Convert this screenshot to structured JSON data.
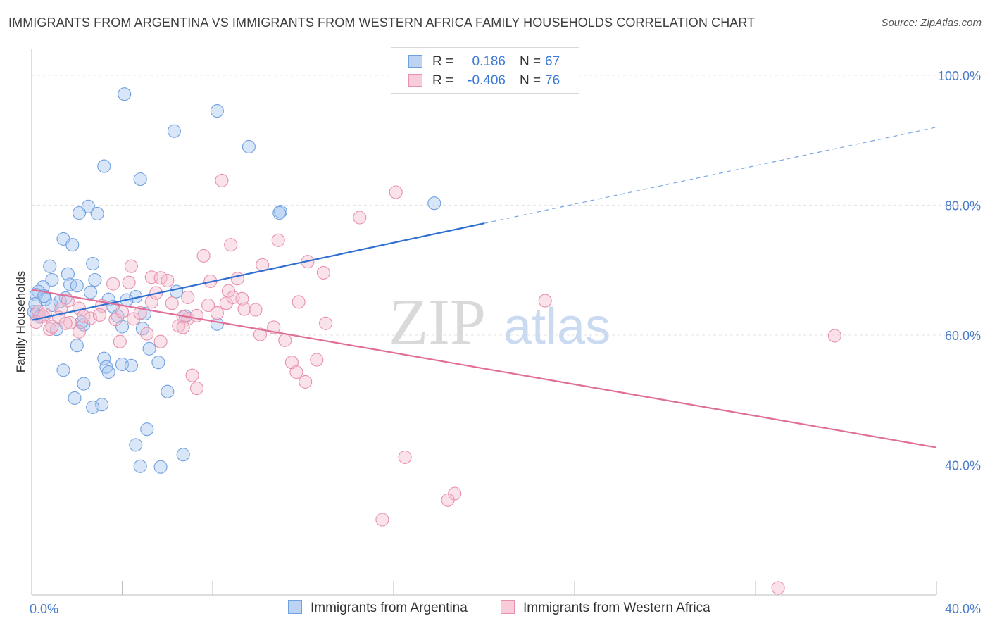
{
  "title": "IMMIGRANTS FROM ARGENTINA VS IMMIGRANTS FROM WESTERN AFRICA FAMILY HOUSEHOLDS CORRELATION CHART",
  "source": "Source: ZipAtlas.com",
  "watermark": {
    "zip": "ZIP",
    "atlas": "atlas"
  },
  "legend": {
    "series1": {
      "r_label": "R =",
      "r_value": "0.186",
      "n_label": "N =",
      "n_value": "67"
    },
    "series2": {
      "r_label": "R =",
      "r_value": "-0.406",
      "n_label": "N =",
      "n_value": "76"
    }
  },
  "chart_data": {
    "type": "scatter",
    "title": "IMMIGRANTS FROM ARGENTINA VS IMMIGRANTS FROM WESTERN AFRICA FAMILY HOUSEHOLDS CORRELATION CHART",
    "xlabel": "",
    "ylabel": "Family Households",
    "xlim": [
      0,
      40
    ],
    "ylim": [
      20,
      104
    ],
    "x_tick_labels": [
      "0.0%",
      "40.0%"
    ],
    "y_ticks": [
      40,
      60,
      80,
      100
    ],
    "y_tick_labels": [
      "40.0%",
      "60.0%",
      "80.0%",
      "100.0%"
    ],
    "grid": "horizontal dashed",
    "legend_position": "top-center",
    "series": [
      {
        "name": "Immigrants from Argentina",
        "color": "#6fa0e0",
        "fill": "#a9c8f0",
        "trend": {
          "x0": 0,
          "y0": 62.3,
          "x1": 20,
          "y1": 77.2,
          "x_dashed_end": 40,
          "y_dashed_end": 92.0
        },
        "points": [
          [
            4.1,
            97.1
          ],
          [
            8.2,
            94.5
          ],
          [
            6.3,
            91.4
          ],
          [
            9.6,
            89.0
          ],
          [
            3.2,
            86.0
          ],
          [
            4.8,
            84.0
          ],
          [
            11.0,
            79.0
          ],
          [
            10.95,
            78.8
          ],
          [
            17.8,
            80.3
          ],
          [
            2.5,
            79.8
          ],
          [
            2.1,
            78.8
          ],
          [
            2.9,
            78.7
          ],
          [
            1.4,
            74.8
          ],
          [
            1.8,
            73.9
          ],
          [
            0.8,
            70.6
          ],
          [
            2.7,
            71.0
          ],
          [
            1.6,
            69.4
          ],
          [
            0.9,
            68.5
          ],
          [
            1.7,
            67.8
          ],
          [
            2.0,
            67.6
          ],
          [
            0.5,
            67.4
          ],
          [
            2.8,
            68.5
          ],
          [
            0.3,
            66.7
          ],
          [
            0.2,
            66.2
          ],
          [
            0.6,
            65.5
          ],
          [
            0.55,
            66.0
          ],
          [
            1.5,
            65.7
          ],
          [
            1.25,
            65.2
          ],
          [
            0.9,
            64.6
          ],
          [
            0.1,
            63.6
          ],
          [
            0.2,
            63.2
          ],
          [
            2.6,
            66.6
          ],
          [
            3.4,
            65.5
          ],
          [
            3.6,
            64.4
          ],
          [
            4.6,
            65.9
          ],
          [
            4.2,
            65.4
          ],
          [
            6.4,
            66.7
          ],
          [
            5.0,
            63.3
          ],
          [
            3.8,
            62.9
          ],
          [
            6.8,
            62.9
          ],
          [
            4.0,
            61.3
          ],
          [
            2.3,
            61.6
          ],
          [
            2.2,
            62.0
          ],
          [
            1.1,
            60.9
          ],
          [
            4.9,
            61.0
          ],
          [
            8.2,
            61.7
          ],
          [
            2.0,
            58.4
          ],
          [
            5.2,
            57.9
          ],
          [
            3.2,
            56.4
          ],
          [
            5.6,
            55.8
          ],
          [
            4.0,
            55.5
          ],
          [
            3.3,
            55.1
          ],
          [
            4.4,
            55.3
          ],
          [
            1.4,
            54.6
          ],
          [
            3.4,
            54.3
          ],
          [
            2.3,
            52.5
          ],
          [
            6.0,
            51.3
          ],
          [
            1.9,
            50.3
          ],
          [
            3.1,
            49.3
          ],
          [
            2.7,
            48.9
          ],
          [
            5.1,
            45.5
          ],
          [
            4.6,
            43.1
          ],
          [
            6.7,
            41.6
          ],
          [
            4.8,
            39.8
          ],
          [
            5.7,
            39.7
          ],
          [
            0.15,
            64.8
          ],
          [
            0.35,
            62.8
          ]
        ]
      },
      {
        "name": "Immigrants from Western Africa",
        "color": "#e890ac",
        "fill": "#f4bfd0",
        "trend": {
          "x0": 0,
          "y0": 67.0,
          "x1": 40,
          "y1": 42.7
        },
        "points": [
          [
            8.4,
            83.8
          ],
          [
            16.1,
            82.0
          ],
          [
            14.5,
            78.1
          ],
          [
            10.9,
            74.6
          ],
          [
            8.8,
            73.9
          ],
          [
            7.6,
            72.2
          ],
          [
            12.2,
            71.3
          ],
          [
            10.2,
            70.8
          ],
          [
            4.4,
            70.6
          ],
          [
            12.9,
            69.6
          ],
          [
            5.3,
            68.9
          ],
          [
            5.7,
            68.8
          ],
          [
            9.1,
            68.7
          ],
          [
            6.0,
            68.4
          ],
          [
            7.9,
            68.3
          ],
          [
            4.3,
            68.1
          ],
          [
            3.6,
            67.9
          ],
          [
            8.7,
            66.8
          ],
          [
            6.9,
            65.8
          ],
          [
            9.3,
            65.6
          ],
          [
            11.8,
            65.1
          ],
          [
            5.3,
            65.1
          ],
          [
            6.2,
            64.9
          ],
          [
            8.6,
            64.9
          ],
          [
            7.8,
            64.6
          ],
          [
            3.1,
            64.5
          ],
          [
            2.1,
            64.1
          ],
          [
            9.4,
            64.0
          ],
          [
            9.9,
            63.9
          ],
          [
            8.2,
            63.4
          ],
          [
            1.6,
            65.3
          ],
          [
            1.3,
            64.0
          ],
          [
            0.3,
            63.6
          ],
          [
            0.6,
            63.2
          ],
          [
            1.2,
            62.7
          ],
          [
            2.3,
            62.9
          ],
          [
            2.6,
            62.6
          ],
          [
            3.7,
            62.4
          ],
          [
            4.5,
            62.5
          ],
          [
            6.9,
            62.5
          ],
          [
            4.8,
            63.4
          ],
          [
            6.7,
            62.8
          ],
          [
            1.7,
            61.9
          ],
          [
            6.5,
            61.4
          ],
          [
            6.7,
            61.2
          ],
          [
            10.7,
            61.2
          ],
          [
            13.0,
            61.8
          ],
          [
            0.8,
            60.9
          ],
          [
            2.1,
            60.5
          ],
          [
            5.1,
            60.2
          ],
          [
            10.1,
            60.1
          ],
          [
            11.2,
            59.2
          ],
          [
            3.9,
            59.0
          ],
          [
            5.7,
            59.0
          ],
          [
            0.9,
            61.3
          ],
          [
            11.5,
            55.8
          ],
          [
            12.6,
            56.2
          ],
          [
            11.7,
            54.3
          ],
          [
            7.1,
            53.8
          ],
          [
            12.1,
            52.8
          ],
          [
            7.3,
            51.8
          ],
          [
            22.7,
            65.3
          ],
          [
            35.5,
            59.9
          ],
          [
            16.5,
            41.2
          ],
          [
            18.7,
            35.6
          ],
          [
            18.4,
            34.6
          ],
          [
            15.5,
            31.6
          ],
          [
            33.0,
            21.1
          ],
          [
            0.5,
            62.9
          ],
          [
            0.2,
            62.0
          ],
          [
            1.5,
            61.8
          ],
          [
            3.0,
            63.1
          ],
          [
            7.3,
            63.0
          ],
          [
            4.0,
            63.6
          ],
          [
            5.5,
            66.5
          ],
          [
            8.9,
            65.8
          ]
        ]
      }
    ]
  }
}
